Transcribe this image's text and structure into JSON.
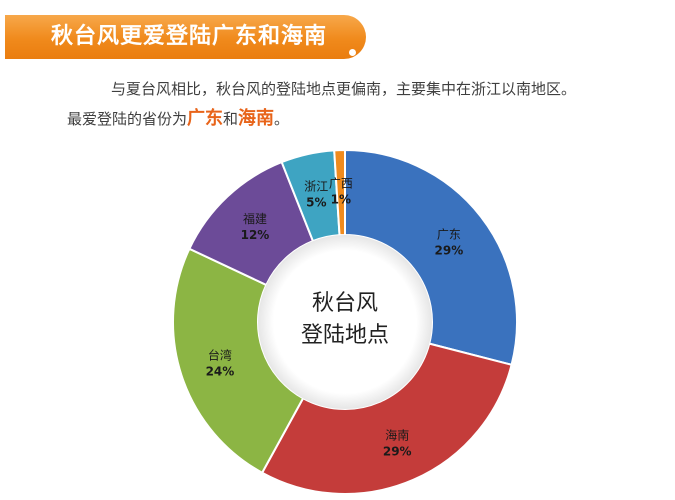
{
  "header": {
    "title": "秋台风更爱登陆广东和海南"
  },
  "intro": {
    "line1": "与夏台风相比，秋台风的登陆地点更偏南，主要集中在浙江以南地区。",
    "line2_prefix": "最爱登陆的省份为",
    "highlight1": "广东",
    "and": "和",
    "highlight2": "海南",
    "period": "。"
  },
  "colors": {
    "accent": "#f08a1c",
    "highlight": "#e8641a"
  },
  "chart_data": {
    "type": "pie",
    "style": "donut",
    "center_label_lines": [
      "秋台风",
      "登陆地点"
    ],
    "slices": [
      {
        "label": "广东",
        "value": 29,
        "pct_label": "29%",
        "color": "#3a72be"
      },
      {
        "label": "海南",
        "value": 29,
        "pct_label": "29%",
        "color": "#c43c3a"
      },
      {
        "label": "台湾",
        "value": 24,
        "pct_label": "24%",
        "color": "#8cb544"
      },
      {
        "label": "福建",
        "value": 12,
        "pct_label": "12%",
        "color": "#6c4b98"
      },
      {
        "label": "浙江",
        "value": 5,
        "pct_label": "5%",
        "color": "#3ea4c2"
      },
      {
        "label": "广西",
        "value": 1,
        "pct_label": "1%",
        "color": "#f08b1d"
      }
    ]
  }
}
